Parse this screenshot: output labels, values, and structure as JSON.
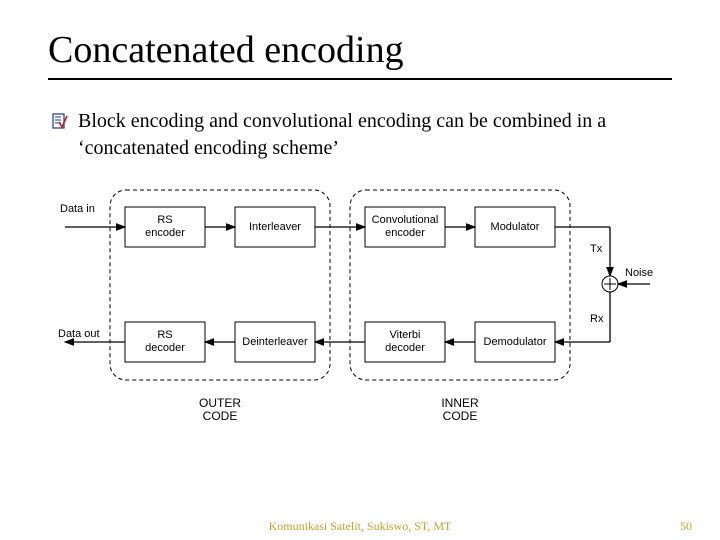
{
  "title": "Concatenated encoding",
  "bullet": "Block encoding and convolutional encoding can be combined in a ‘concatenated encoding scheme’",
  "diagram": {
    "type": "flowchart",
    "stroke": "#000000",
    "box_fill": "#ffffff",
    "font_size": 11,
    "label_font_size": 11,
    "nodes": {
      "data_in": "Data in",
      "data_out": "Data out",
      "rs_enc": "RS\nencoder",
      "rs_dec": "RS\ndecoder",
      "interleaver": "Interleaver",
      "deinterleaver": "Deinterleaver",
      "conv_enc": "Convolutional\nencoder",
      "viterbi": "Viterbi\ndecoder",
      "modulator": "Modulator",
      "demodulator": "Demodulator",
      "noise": "Noise",
      "tx": "Tx",
      "rx": "Rx"
    },
    "groups": {
      "outer": "OUTER\nCODE",
      "inner": "INNER\nCODE"
    }
  },
  "footer": "Komunikasi Satelit, Sukiswo, ST, MT",
  "page": "50"
}
